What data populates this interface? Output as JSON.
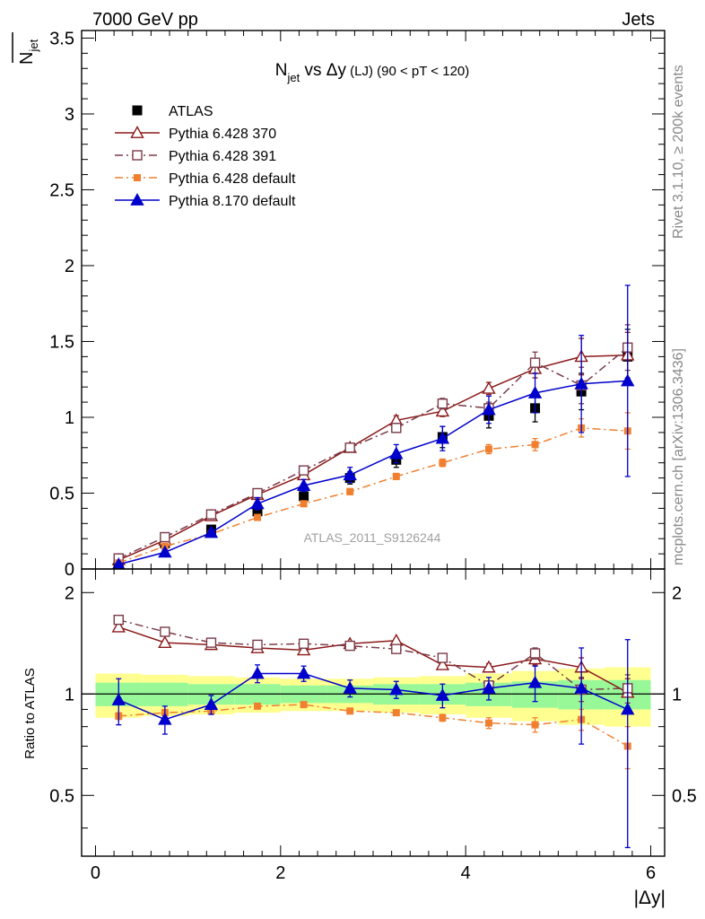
{
  "header": {
    "left": "7000 GeV pp",
    "right": "Jets"
  },
  "side_labels": {
    "rivet": "Rivet 3.1.10, ≥ 200k events",
    "mcplots": "mcplots.cern.ch [arXiv:1306.3436]"
  },
  "watermark": "ATLAS_2011_S9126244",
  "chart_data": [
    {
      "type": "scatter",
      "title": {
        "main": "N",
        "sub": "jet",
        "rest": " vs Δy",
        "small": " (LJ)",
        "cut": " (90 < pT < 120)"
      },
      "ylabel": {
        "bar": "N",
        "sub": "jet"
      },
      "xlim": [
        -0.15,
        6.15
      ],
      "ylim": [
        0,
        3.55
      ],
      "yticks": [
        0,
        0.5,
        1,
        1.5,
        2,
        2.5,
        3,
        3.5
      ],
      "ytick_labels": [
        "0",
        "0.5",
        "1",
        "1.5",
        "2",
        "2.5",
        "3",
        "3.5"
      ],
      "x": [
        0.25,
        0.75,
        1.25,
        1.75,
        2.25,
        2.75,
        3.25,
        3.75,
        4.25,
        4.75,
        5.25,
        5.75
      ],
      "legend": {
        "placement": "top-left"
      },
      "series": [
        {
          "name": "ATLAS",
          "color": "#000000",
          "marker": "square-filled",
          "line": "none",
          "values": [
            0.04,
            0.17,
            0.26,
            0.38,
            0.48,
            0.6,
            0.72,
            0.87,
            1.01,
            1.06,
            1.17,
            1.4
          ],
          "err": [
            0.01,
            0.02,
            0.02,
            0.03,
            0.03,
            0.04,
            0.05,
            0.07,
            0.08,
            0.09,
            0.12,
            0.18
          ]
        },
        {
          "name": "Pythia 6.428 370",
          "color": "#8b1a1a",
          "marker": "triangle-open",
          "line": "solid",
          "values": [
            0.06,
            0.19,
            0.35,
            0.49,
            0.62,
            0.8,
            0.98,
            1.04,
            1.19,
            1.32,
            1.4,
            1.41
          ],
          "err": [
            0.005,
            0.01,
            0.015,
            0.02,
            0.02,
            0.025,
            0.03,
            0.035,
            0.04,
            0.06,
            0.12,
            0.15
          ]
        },
        {
          "name": "Pythia 6.428 391",
          "color": "#7a3b4a",
          "marker": "square-open",
          "line": "dashdot",
          "values": [
            0.07,
            0.21,
            0.36,
            0.5,
            0.65,
            0.8,
            0.93,
            1.09,
            1.06,
            1.36,
            1.21,
            1.46
          ],
          "err": [
            0.005,
            0.01,
            0.015,
            0.02,
            0.02,
            0.025,
            0.03,
            0.035,
            0.04,
            0.07,
            0.12,
            0.15
          ]
        },
        {
          "name": "Pythia 6.428 default",
          "color": "#f08030",
          "marker": "square-filled-small",
          "line": "dashdot",
          "values": [
            0.04,
            0.15,
            0.23,
            0.34,
            0.43,
            0.51,
            0.61,
            0.7,
            0.79,
            0.82,
            0.93,
            0.91
          ],
          "err": [
            0.005,
            0.01,
            0.01,
            0.015,
            0.015,
            0.02,
            0.02,
            0.025,
            0.03,
            0.04,
            0.06,
            0.12
          ]
        },
        {
          "name": "Pythia 8.170 default",
          "color": "#0000cc",
          "marker": "triangle-filled",
          "line": "solid",
          "values": [
            0.03,
            0.11,
            0.24,
            0.43,
            0.55,
            0.62,
            0.76,
            0.86,
            1.05,
            1.16,
            1.22,
            1.24
          ],
          "err": [
            0.01,
            0.015,
            0.02,
            0.04,
            0.04,
            0.05,
            0.06,
            0.08,
            0.09,
            0.13,
            0.32,
            0.63
          ]
        }
      ]
    },
    {
      "type": "scatter",
      "ylabel": "Ratio to ATLAS",
      "xlabel": "|Δy|",
      "xlim": [
        -0.15,
        6.15
      ],
      "ylim": [
        0.33,
        2.35
      ],
      "yticks": [
        0.5,
        1,
        2
      ],
      "ytick_labels": [
        "0.5",
        "1",
        "2"
      ],
      "xticks": [
        0,
        2,
        4,
        6
      ],
      "xtick_labels": [
        "0",
        "2",
        "4",
        "6"
      ],
      "x": [
        0.25,
        0.75,
        1.25,
        1.75,
        2.25,
        2.75,
        3.25,
        3.75,
        4.25,
        4.75,
        5.25,
        5.75
      ],
      "reference_line": 1,
      "bands": {
        "inner_color": "#98f898",
        "outer_color": "#ffff90",
        "inner_halfwidth": [
          0.08,
          0.08,
          0.07,
          0.07,
          0.06,
          0.06,
          0.07,
          0.07,
          0.08,
          0.09,
          0.1,
          0.1
        ],
        "outer_halfwidth": [
          0.15,
          0.14,
          0.13,
          0.12,
          0.11,
          0.11,
          0.12,
          0.13,
          0.15,
          0.17,
          0.19,
          0.2
        ]
      },
      "series": [
        {
          "name": "Pythia 6.428 370",
          "color": "#8b1a1a",
          "marker": "triangle-open",
          "line": "solid",
          "values": [
            1.58,
            1.42,
            1.4,
            1.37,
            1.35,
            1.41,
            1.44,
            1.22,
            1.2,
            1.27,
            1.2,
            1.01
          ],
          "err": [
            0.03,
            0.02,
            0.02,
            0.02,
            0.02,
            0.02,
            0.02,
            0.03,
            0.03,
            0.05,
            0.08,
            0.1
          ]
        },
        {
          "name": "Pythia 6.428 391",
          "color": "#7a3b4a",
          "marker": "square-open",
          "line": "dashdot",
          "values": [
            1.66,
            1.53,
            1.42,
            1.4,
            1.41,
            1.39,
            1.36,
            1.28,
            1.06,
            1.32,
            1.03,
            1.04
          ],
          "err": [
            0.03,
            0.02,
            0.02,
            0.02,
            0.02,
            0.02,
            0.02,
            0.03,
            0.03,
            0.05,
            0.08,
            0.1
          ]
        },
        {
          "name": "Pythia 6.428 default",
          "color": "#f08030",
          "marker": "square-filled-small",
          "line": "dashdot",
          "values": [
            0.86,
            0.88,
            0.89,
            0.92,
            0.93,
            0.89,
            0.88,
            0.85,
            0.82,
            0.81,
            0.84,
            0.7
          ],
          "err": [
            0.02,
            0.02,
            0.02,
            0.015,
            0.015,
            0.015,
            0.015,
            0.02,
            0.03,
            0.04,
            0.06,
            0.1
          ]
        },
        {
          "name": "Pythia 8.170 default",
          "color": "#0000cc",
          "marker": "triangle-filled",
          "line": "solid",
          "values": [
            0.96,
            0.84,
            0.93,
            1.15,
            1.15,
            1.04,
            1.03,
            0.99,
            1.04,
            1.08,
            1.04,
            0.9
          ],
          "err": [
            0.15,
            0.08,
            0.06,
            0.07,
            0.06,
            0.06,
            0.06,
            0.08,
            0.08,
            0.13,
            0.33,
            0.55
          ]
        }
      ]
    }
  ]
}
